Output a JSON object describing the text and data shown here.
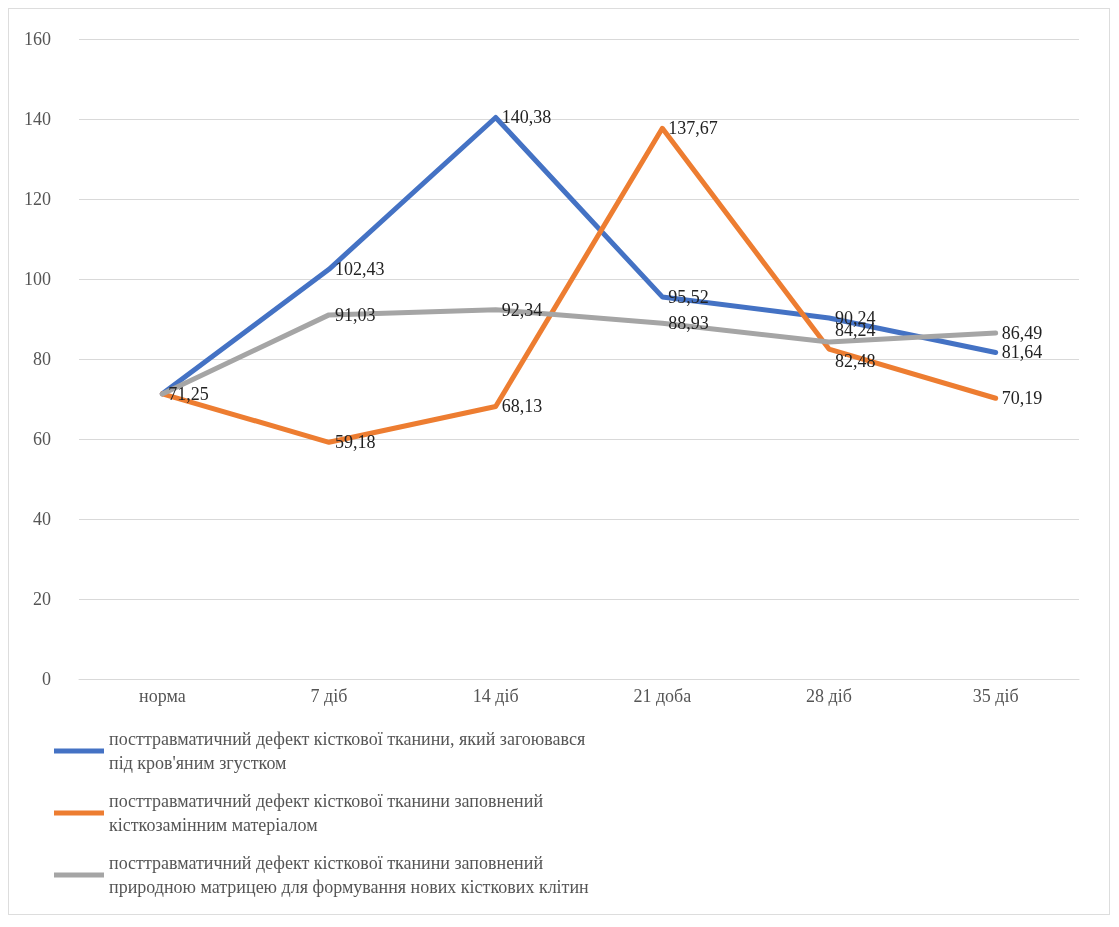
{
  "chart_data": {
    "type": "line",
    "categories": [
      "норма",
      "7 діб",
      "14 діб",
      "21 доба",
      "28 діб",
      "35 діб"
    ],
    "series": [
      {
        "name": "посттравматичний дефект кісткової тканини, який загоювався під кров'яним згустком",
        "color": "#4472c4",
        "values": [
          71.3,
          102.43,
          140.38,
          95.52,
          90.24,
          81.64
        ],
        "value_labels": [
          null,
          "102,43",
          "140,38",
          "95,52",
          "90,24",
          "81,64"
        ]
      },
      {
        "name": "посттравматичний дефект кісткової тканини заповнений кісткозамінним матеріалом",
        "color": "#ed7d31",
        "values": [
          71.3,
          59.18,
          68.13,
          137.67,
          82.48,
          70.19
        ],
        "value_labels": [
          null,
          "59,18",
          "68,13",
          "137,67",
          "82,48",
          "70,19"
        ]
      },
      {
        "name": "посттравматичний дефект кісткової тканини заповнений природною матрицею для формування нових кісткових клітин",
        "color": "#a5a5a5",
        "values": [
          71.25,
          91.03,
          92.34,
          88.93,
          84.24,
          86.49
        ],
        "value_labels": [
          "71,25",
          "91,03",
          "92,34",
          "88,93",
          "84,24",
          "86,49"
        ]
      }
    ],
    "ylim": [
      0,
      160
    ],
    "yticks": [
      0,
      20,
      40,
      60,
      80,
      100,
      120,
      140,
      160
    ],
    "grid": "y",
    "legend": "bottom",
    "marker": "none",
    "line_style": "solid"
  }
}
